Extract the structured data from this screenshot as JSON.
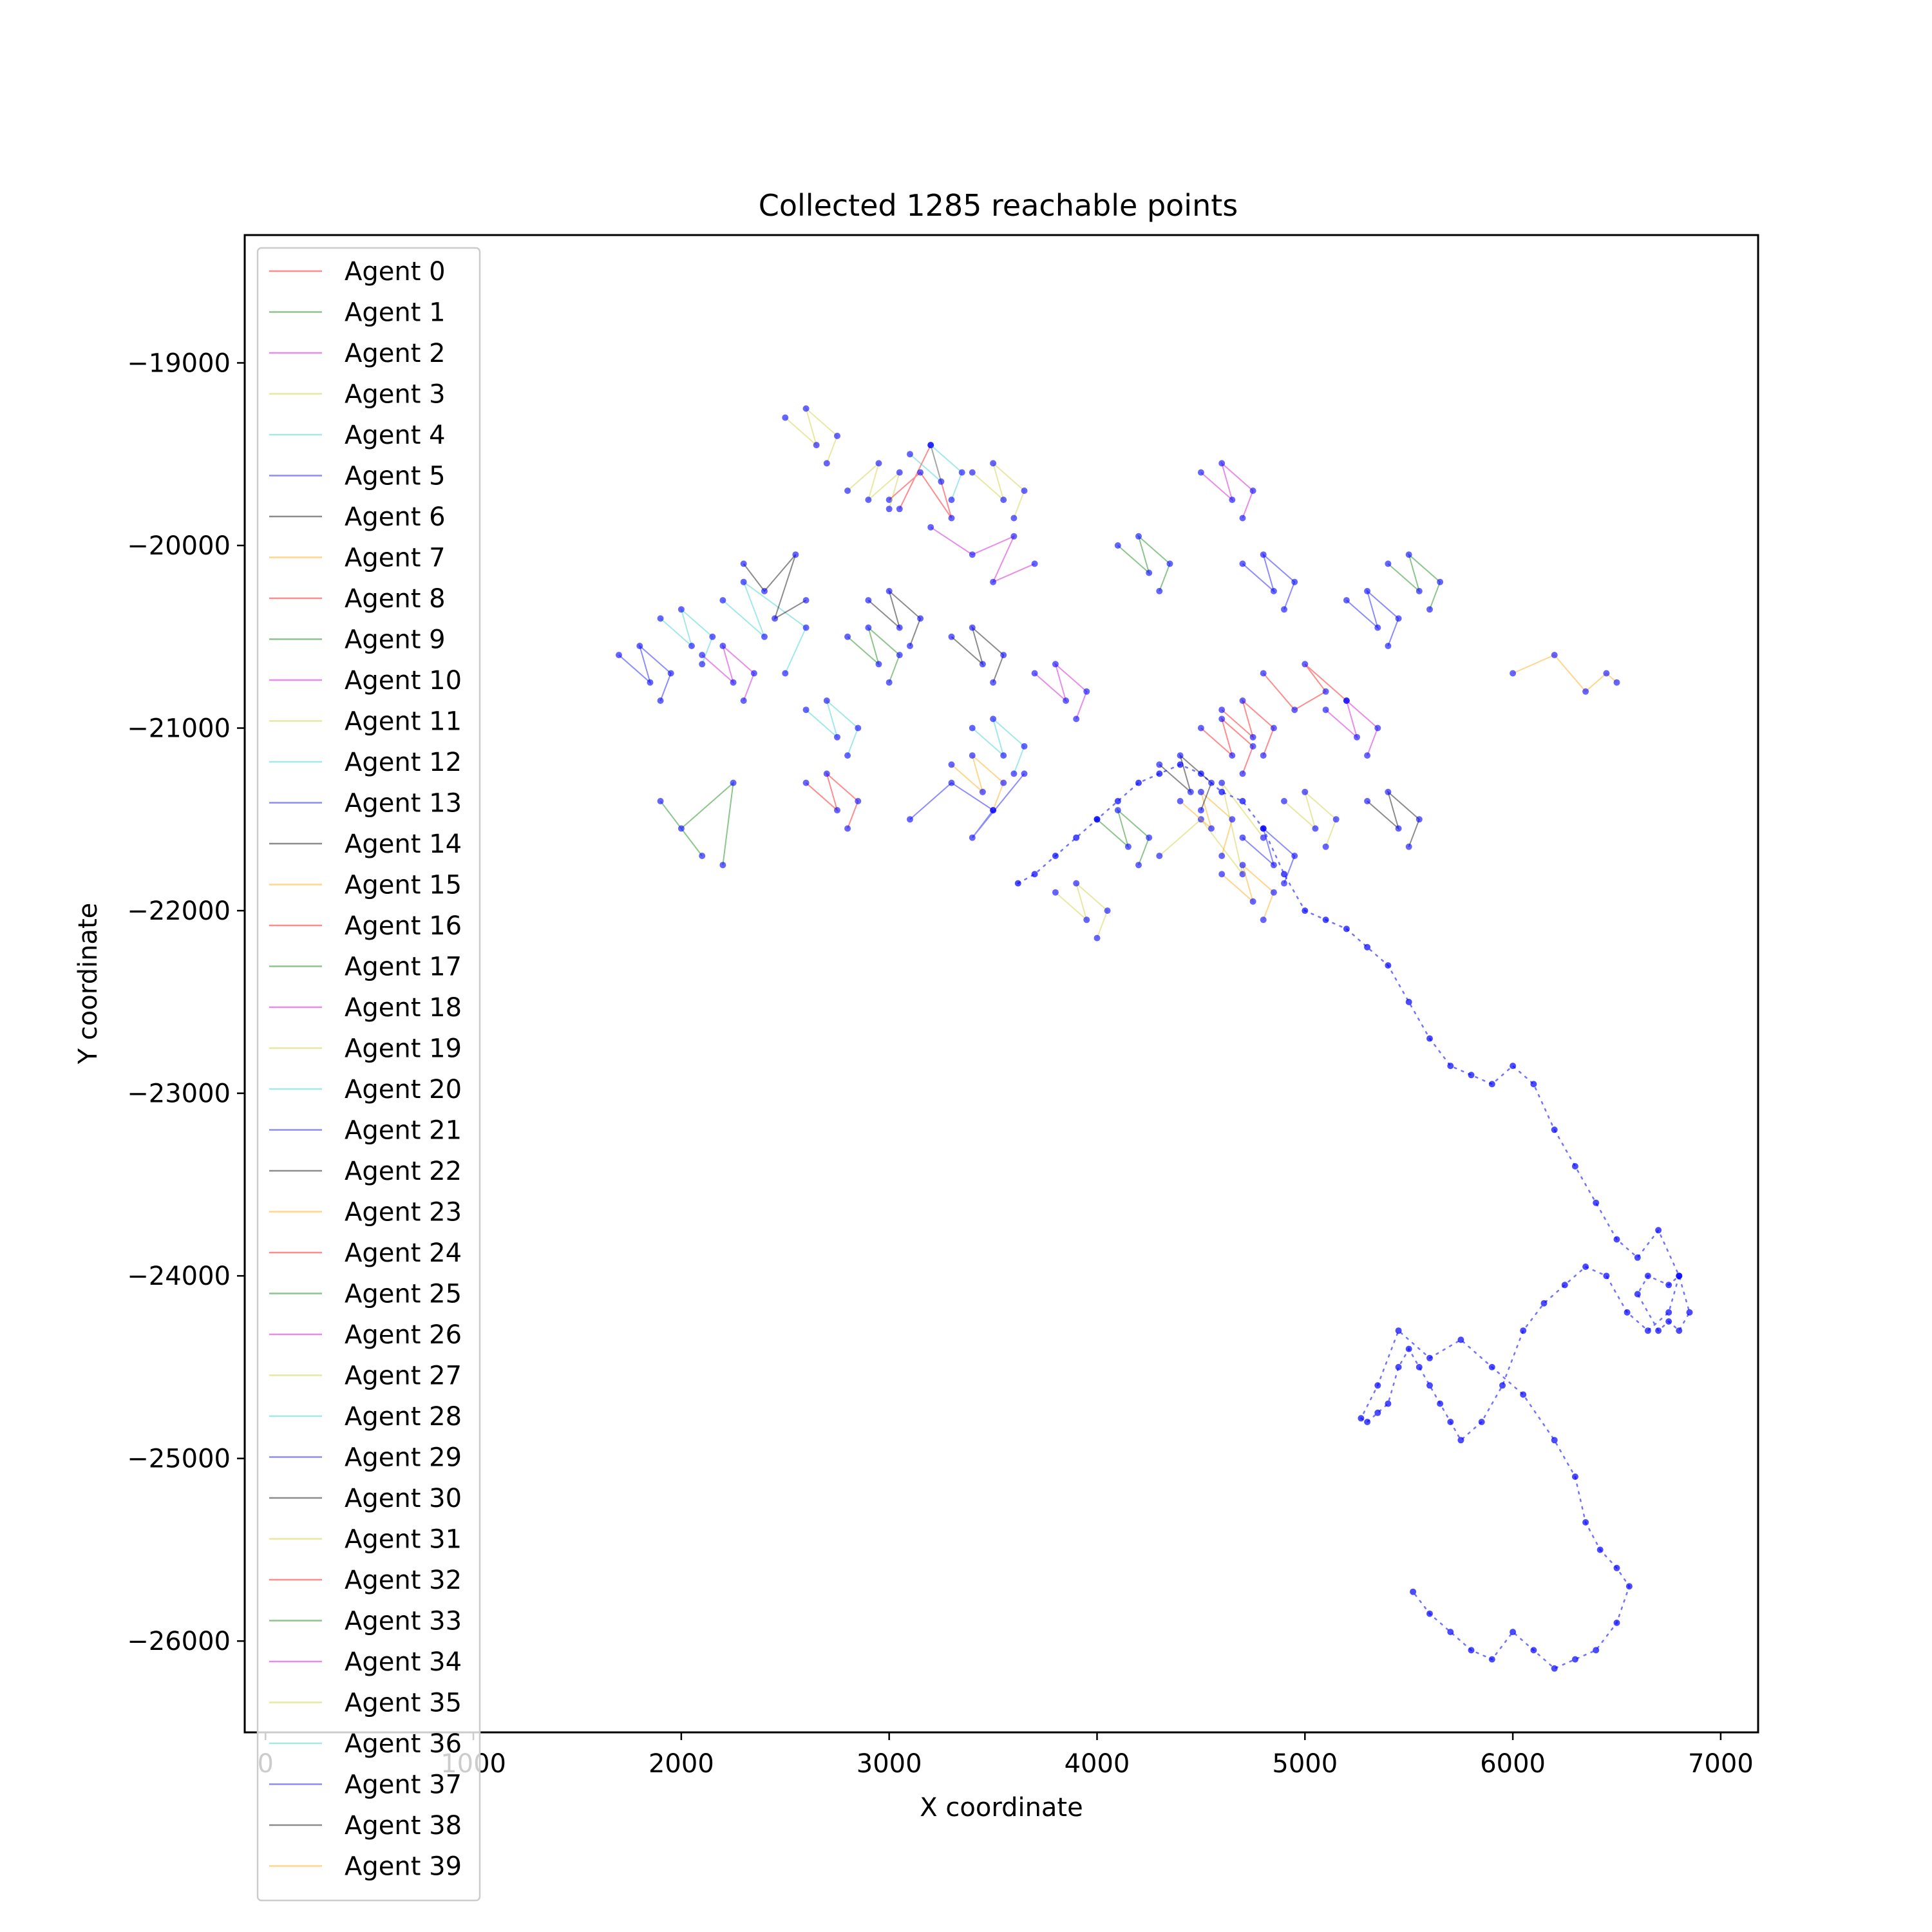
{
  "chart_data": {
    "type": "line",
    "title": "Collected 1285 reachable points",
    "xlabel": "X coordinate",
    "ylabel": "Y coordinate",
    "xlim": [
      -100,
      7180
    ],
    "ylim": [
      -26500,
      -18300
    ],
    "xticks": [
      0,
      1000,
      2000,
      3000,
      4000,
      5000,
      6000,
      7000
    ],
    "xtick_labels": [
      "0",
      "1000",
      "2000",
      "3000",
      "4000",
      "5000",
      "6000",
      "7000"
    ],
    "yticks": [
      -19000,
      -20000,
      -21000,
      -22000,
      -23000,
      -24000,
      -25000,
      -26000
    ],
    "ytick_labels": [
      "−19000",
      "−20000",
      "−21000",
      "−22000",
      "−23000",
      "−24000",
      "−25000",
      "−26000"
    ],
    "grid": false,
    "legend_position": "upper-left",
    "series_colors": [
      "#ff0000",
      "#008000",
      "#cc00cc",
      "#cccc33",
      "#33cccc",
      "#0000ff",
      "#000000",
      "#ffa500"
    ],
    "series": [
      {
        "name": "Agent 0",
        "color": "#ff0000",
        "x": [
          3000,
          3150,
          3300,
          3200,
          3050
        ],
        "y": [
          -19750,
          -19600,
          -19850,
          -19450,
          -19800
        ]
      },
      {
        "name": "Agent 1",
        "color": "#008000",
        "x": [
          1900,
          2100,
          2000,
          2250,
          2200
        ],
        "y": [
          -21400,
          -21700,
          -21550,
          -21300,
          -21750
        ]
      },
      {
        "name": "Agent 2",
        "color": "#cc00cc",
        "x": [
          3200,
          3400,
          3600,
          3500,
          3700
        ],
        "y": [
          -19900,
          -20050,
          -19950,
          -20200,
          -20100
        ]
      },
      {
        "name": "Agent 3",
        "color": "#cccc33",
        "x": [
          4300,
          4500,
          4700,
          4600,
          4800
        ],
        "y": [
          -21700,
          -21500,
          -21800,
          -21300,
          -21600
        ]
      },
      {
        "name": "Agent 4",
        "color": "#33cccc",
        "x": [
          2200,
          2400,
          2300,
          2600,
          2500
        ],
        "y": [
          -20300,
          -20500,
          -20200,
          -20450,
          -20700
        ]
      },
      {
        "name": "Agent 5",
        "color": "#0000ff",
        "x": [
          3100,
          3300,
          3500,
          3400,
          3650
        ],
        "y": [
          -21500,
          -21300,
          -21450,
          -21600,
          -21250
        ]
      },
      {
        "name": "Agent 6",
        "color": "#000000",
        "x": [
          2300,
          2400,
          2550,
          2450,
          2600
        ],
        "y": [
          -20100,
          -20250,
          -20050,
          -20400,
          -20300
        ]
      },
      {
        "name": "Agent 7",
        "color": "#ffa500",
        "x": [
          6000,
          6200,
          6350,
          6450,
          6500
        ],
        "y": [
          -20700,
          -20600,
          -20800,
          -20700,
          -20750
        ]
      },
      {
        "name": "Agent 8",
        "color": "#ff0000",
        "x": [
          4800,
          4950,
          5100,
          5000,
          5200
        ],
        "y": [
          -20700,
          -20900,
          -20800,
          -20650,
          -20850
        ]
      },
      {
        "name": "Agent 9",
        "color": "#008000",
        "x": [
          4100,
          4250,
          4200,
          4350,
          4300
        ],
        "y": [
          -20000,
          -20150,
          -19950,
          -20100,
          -20250
        ]
      },
      {
        "name": "Agent 10",
        "color": "#cc00cc",
        "x": [
          4500,
          4650,
          4600,
          4750,
          4700
        ],
        "y": [
          -19600,
          -19750,
          -19550,
          -19700,
          -19850
        ]
      },
      {
        "name": "Agent 11",
        "color": "#cccc33",
        "x": [
          2800,
          2950,
          2900,
          3050,
          3000
        ],
        "y": [
          -19700,
          -19550,
          -19750,
          -19600,
          -19800
        ]
      },
      {
        "name": "Agent 12",
        "color": "#33cccc",
        "x": [
          3400,
          3550,
          3500,
          3650,
          3600
        ],
        "y": [
          -21000,
          -21150,
          -20950,
          -21100,
          -21250
        ]
      },
      {
        "name": "Agent 13",
        "color": "#0000ff",
        "x": [
          5200,
          5350,
          5300,
          5450,
          5400
        ],
        "y": [
          -20300,
          -20450,
          -20250,
          -20400,
          -20550
        ]
      },
      {
        "name": "Agent 14",
        "color": "#000000",
        "x": [
          5300,
          5450,
          5400,
          5550,
          5500
        ],
        "y": [
          -21400,
          -21550,
          -21350,
          -21500,
          -21650
        ]
      },
      {
        "name": "Agent 15",
        "color": "#ffa500",
        "x": [
          4400,
          4550,
          4500,
          4650,
          4600
        ],
        "y": [
          -21400,
          -21550,
          -21350,
          -21500,
          -21700
        ]
      },
      {
        "name": "Agent 16",
        "color": "#ff0000",
        "x": [
          2600,
          2750,
          2700,
          2850,
          2800
        ],
        "y": [
          -21300,
          -21450,
          -21250,
          -21400,
          -21550
        ]
      },
      {
        "name": "Agent 17",
        "color": "#008000",
        "x": [
          4000,
          4150,
          4100,
          4250,
          4200
        ],
        "y": [
          -21500,
          -21650,
          -21450,
          -21600,
          -21750
        ]
      },
      {
        "name": "Agent 18",
        "color": "#cc00cc",
        "x": [
          3700,
          3850,
          3800,
          3950,
          3900
        ],
        "y": [
          -20700,
          -20850,
          -20650,
          -20800,
          -20950
        ]
      },
      {
        "name": "Agent 19",
        "color": "#cccc33",
        "x": [
          2500,
          2650,
          2600,
          2750,
          2700
        ],
        "y": [
          -19300,
          -19450,
          -19250,
          -19400,
          -19550
        ]
      },
      {
        "name": "Agent 20",
        "color": "#33cccc",
        "x": [
          1900,
          2050,
          2000,
          2150,
          2100
        ],
        "y": [
          -20400,
          -20550,
          -20350,
          -20500,
          -20650
        ]
      },
      {
        "name": "Agent 21",
        "color": "#0000ff",
        "x": [
          4700,
          4850,
          4800,
          4950,
          4900
        ],
        "y": [
          -20100,
          -20250,
          -20050,
          -20200,
          -20350
        ]
      },
      {
        "name": "Agent 22",
        "color": "#000000",
        "x": [
          2900,
          3050,
          3000,
          3150,
          3100
        ],
        "y": [
          -20300,
          -20450,
          -20250,
          -20400,
          -20550
        ]
      },
      {
        "name": "Agent 23",
        "color": "#ffa500",
        "x": [
          3300,
          3450,
          3400,
          3550,
          3500
        ],
        "y": [
          -21200,
          -21350,
          -21150,
          -21300,
          -21450
        ]
      },
      {
        "name": "Agent 24",
        "color": "#ff0000",
        "x": [
          4600,
          4750,
          4700,
          4850,
          4800
        ],
        "y": [
          -20900,
          -21050,
          -20850,
          -21000,
          -21150
        ]
      },
      {
        "name": "Agent 25",
        "color": "#008000",
        "x": [
          5400,
          5550,
          5500,
          5650,
          5600
        ],
        "y": [
          -20100,
          -20250,
          -20050,
          -20200,
          -20350
        ]
      },
      {
        "name": "Agent 26",
        "color": "#cc00cc",
        "x": [
          2100,
          2250,
          2200,
          2350,
          2300
        ],
        "y": [
          -20600,
          -20750,
          -20550,
          -20700,
          -20850
        ]
      },
      {
        "name": "Agent 27",
        "color": "#cccc33",
        "x": [
          4900,
          5050,
          5000,
          5150,
          5100
        ],
        "y": [
          -21400,
          -21550,
          -21350,
          -21500,
          -21650
        ]
      },
      {
        "name": "Agent 28",
        "color": "#33cccc",
        "x": [
          2600,
          2750,
          2700,
          2850,
          2800
        ],
        "y": [
          -20900,
          -21050,
          -20850,
          -21000,
          -21150
        ]
      },
      {
        "name": "Agent 29",
        "color": "#0000ff",
        "x": [
          1700,
          1850,
          1800,
          1950,
          1900
        ],
        "y": [
          -20600,
          -20750,
          -20550,
          -20700,
          -20850
        ]
      },
      {
        "name": "Agent 30",
        "color": "#000000",
        "x": [
          4300,
          4450,
          4400,
          4550,
          4500
        ],
        "y": [
          -21200,
          -21350,
          -21150,
          -21300,
          -21450
        ]
      },
      {
        "name": "Agent 31",
        "color": "#cccc33",
        "x": [
          3400,
          3550,
          3500,
          3650,
          3600
        ],
        "y": [
          -19600,
          -19750,
          -19550,
          -19700,
          -19850
        ]
      },
      {
        "name": "Agent 32",
        "color": "#ff0000",
        "x": [
          4500,
          4650,
          4600,
          4750,
          4700
        ],
        "y": [
          -21000,
          -21150,
          -20950,
          -21100,
          -21250
        ]
      },
      {
        "name": "Agent 33",
        "color": "#008000",
        "x": [
          2800,
          2950,
          2900,
          3050,
          3000
        ],
        "y": [
          -20500,
          -20650,
          -20450,
          -20600,
          -20750
        ]
      },
      {
        "name": "Agent 34",
        "color": "#cc00cc",
        "x": [
          5100,
          5250,
          5200,
          5350,
          5300
        ],
        "y": [
          -20900,
          -21050,
          -20850,
          -21000,
          -21150
        ]
      },
      {
        "name": "Agent 35",
        "color": "#cccc33",
        "x": [
          3800,
          3950,
          3900,
          4050,
          4000
        ],
        "y": [
          -21900,
          -22050,
          -21850,
          -22000,
          -22150
        ]
      },
      {
        "name": "Agent 36",
        "color": "#33cccc",
        "x": [
          3100,
          3250,
          3200,
          3350,
          3300
        ],
        "y": [
          -19500,
          -19650,
          -19450,
          -19600,
          -19750
        ]
      },
      {
        "name": "Agent 37",
        "color": "#0000ff",
        "x": [
          4700,
          4850,
          4800,
          4950,
          4900
        ],
        "y": [
          -21600,
          -21750,
          -21550,
          -21700,
          -21850
        ]
      },
      {
        "name": "Agent 38",
        "color": "#000000",
        "x": [
          3300,
          3450,
          3400,
          3550,
          3500
        ],
        "y": [
          -20500,
          -20650,
          -20450,
          -20600,
          -20750
        ]
      },
      {
        "name": "Agent 39",
        "color": "#ffa500",
        "x": [
          4600,
          4750,
          4700,
          4850,
          4800
        ],
        "y": [
          -21800,
          -21950,
          -21750,
          -21900,
          -22050
        ]
      }
    ],
    "long_path": {
      "color": "#0000ff",
      "x": [
        3620,
        3700,
        3800,
        3900,
        4000,
        4100,
        4200,
        4300,
        4400,
        4500,
        4600,
        4700,
        4800,
        4900,
        5000,
        5100,
        5200,
        5300,
        5400,
        5500,
        5600,
        5700,
        5800,
        5900,
        6000,
        6100,
        6200,
        6300,
        6400,
        6500,
        6600,
        6700,
        6800,
        6850,
        6800,
        6750,
        6700,
        6600,
        6650,
        6750,
        6800,
        6750,
        6650,
        6550,
        6450,
        6350,
        6250,
        6150,
        6050,
        5950,
        5850,
        5750,
        5700,
        5650,
        5600,
        5550,
        5500,
        5450,
        5400,
        5350,
        5300,
        5270,
        5350,
        5450,
        5600,
        5750,
        5900,
        6050,
        6200,
        6300,
        6350,
        6420,
        6500,
        6560,
        6500,
        6400,
        6300,
        6200,
        6100,
        6000,
        5900,
        5800,
        5700,
        5600,
        5520
      ],
      "y": [
        -21850,
        -21800,
        -21700,
        -21600,
        -21500,
        -21400,
        -21300,
        -21250,
        -21200,
        -21250,
        -21350,
        -21400,
        -21550,
        -21800,
        -22000,
        -22050,
        -22100,
        -22200,
        -22300,
        -22500,
        -22700,
        -22850,
        -22900,
        -22950,
        -22850,
        -22950,
        -23200,
        -23400,
        -23600,
        -23800,
        -23900,
        -23750,
        -24000,
        -24200,
        -24300,
        -24250,
        -24300,
        -24100,
        -24000,
        -24050,
        -24000,
        -24200,
        -24300,
        -24200,
        -24000,
        -23950,
        -24050,
        -24150,
        -24300,
        -24600,
        -24800,
        -24900,
        -24800,
        -24700,
        -24600,
        -24500,
        -24400,
        -24500,
        -24700,
        -24750,
        -24800,
        -24780,
        -24600,
        -24300,
        -24450,
        -24350,
        -24500,
        -24650,
        -24900,
        -25100,
        -25350,
        -25500,
        -25600,
        -25700,
        -25900,
        -26050,
        -26100,
        -26150,
        -26050,
        -25950,
        -26100,
        -26050,
        -25950,
        -25850,
        -25730
      ]
    }
  }
}
